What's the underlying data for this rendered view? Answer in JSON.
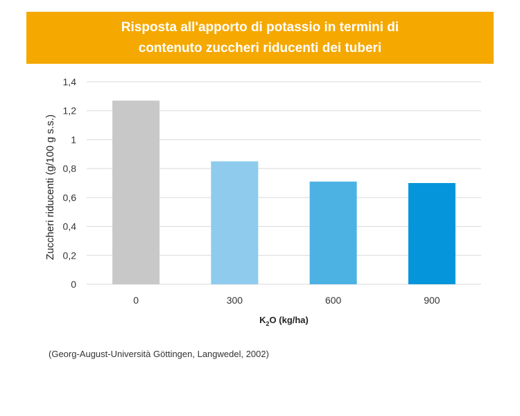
{
  "title": {
    "line1": "Risposta all'apporto di potassio in termini di",
    "line2": "contenuto zuccheri riducenti dei tuberi"
  },
  "chart_data": {
    "type": "bar",
    "title": "Risposta all'apporto di potassio in termini di contenuto zuccheri riducenti dei tuberi",
    "categories": [
      "0",
      "300",
      "600",
      "900"
    ],
    "values": [
      1.27,
      0.85,
      0.71,
      0.7
    ],
    "bar_colors": [
      "#c8c8c8",
      "#8ecbec",
      "#4cb2e4",
      "#0595da"
    ],
    "xlabel": "K2O (kg/ha)",
    "xlabel_parts": {
      "main": "K",
      "sub": "2",
      "rest": "O (kg/ha)"
    },
    "ylabel": "Zuccheri riducenti (g/100 g s.s.)",
    "ylim": [
      0,
      1.4
    ],
    "yticks": [
      0,
      0.2,
      0.4,
      0.6,
      0.8,
      1.0,
      1.2,
      1.4
    ],
    "ytick_labels": [
      "0",
      "0,2",
      "0,4",
      "0,6",
      "0,8",
      "1",
      "1,2",
      "1,4"
    ],
    "grid": true,
    "gridline_color": "#d9d9d9",
    "legend": "none"
  },
  "source": "(Georg-August-Università Göttingen, Langwedel, 2002)"
}
